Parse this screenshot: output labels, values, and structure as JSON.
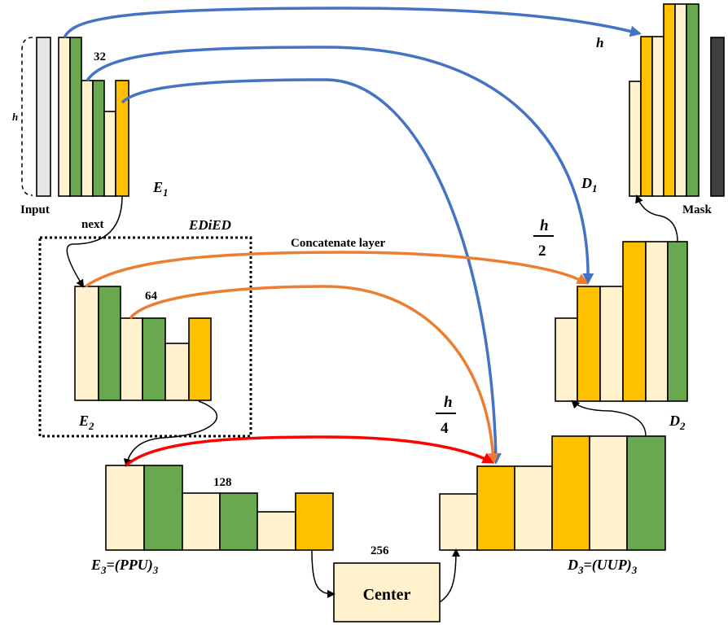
{
  "colors": {
    "cream": "#FFF2CC",
    "green": "#6AA84F",
    "orange": "#FFC000",
    "gray_light": "#E7E6E6",
    "gray_dark": "#3F3F3F",
    "skip_level1": "#4472C4",
    "skip_level2": "#ED7D31",
    "skip_level3": "#FF0000",
    "flow": "#000000"
  },
  "labels": {
    "input": "Input",
    "input_height": "h",
    "channels_e1": "32",
    "channels_e2": "64",
    "channels_e3": "128",
    "channels_center": "256",
    "next": "next",
    "ediED": "EDiED",
    "concat": "Concatenate layer",
    "mask": "Mask",
    "center": "Center",
    "size_d1": "h",
    "size_d2_num": "h",
    "size_d2_den": "2",
    "size_d3_num": "h",
    "size_d3_den": "4"
  },
  "stage_names": {
    "e1": {
      "main": "E",
      "sub": "1"
    },
    "e2": {
      "main": "E",
      "sub": "2"
    },
    "e3": {
      "main": "E",
      "mid": "=(PPU)",
      "sub": "3"
    },
    "d1": {
      "main": "D",
      "sub": "1"
    },
    "d2": {
      "main": "D",
      "sub": "2"
    },
    "d3": {
      "main": "D",
      "mid": "=(UUP)",
      "sub": "3"
    }
  },
  "blocks": {
    "e1": [
      "cream",
      "green",
      "cream",
      "green",
      "cream",
      "orange"
    ],
    "e2": [
      "cream",
      "green",
      "cream",
      "green",
      "cream",
      "orange"
    ],
    "e3": [
      "cream",
      "green",
      "cream",
      "green",
      "cream",
      "orange"
    ],
    "d1": [
      "cream",
      "orange",
      "cream",
      "orange",
      "cream",
      "green"
    ],
    "d2": [
      "cream",
      "orange",
      "cream",
      "orange",
      "cream",
      "green"
    ],
    "d3": [
      "cream",
      "orange",
      "cream",
      "orange",
      "cream",
      "green"
    ]
  }
}
